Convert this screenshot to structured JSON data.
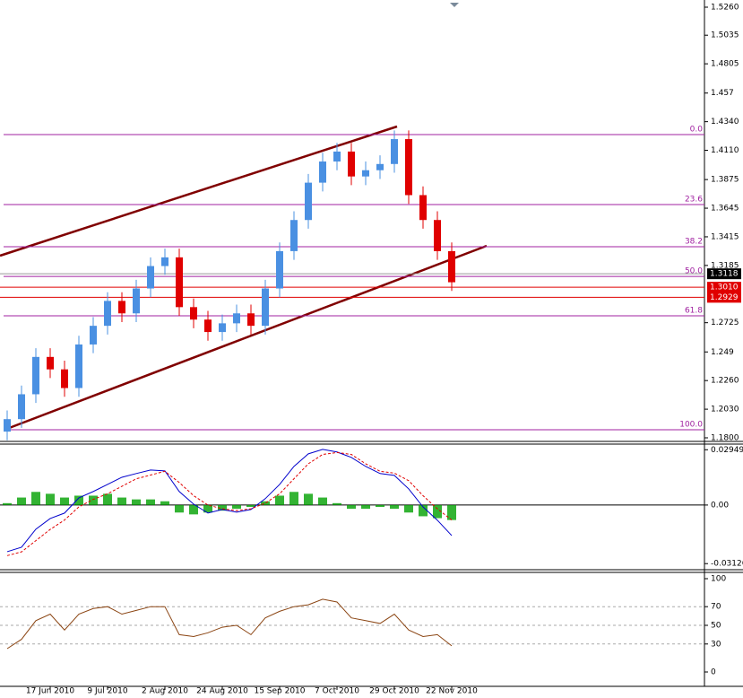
{
  "chart_data": [
    {
      "type": "candlestick",
      "categories": [
        null,
        null,
        null,
        "17 Jun 2010",
        null,
        null,
        null,
        "9 Jul 2010",
        null,
        null,
        null,
        "2 Aug 2010",
        null,
        null,
        null,
        "24 Aug 2010",
        null,
        null,
        null,
        "15 Sep 2010",
        null,
        null,
        null,
        "7 Oct 2010",
        null,
        null,
        null,
        "29 Oct 2010",
        null,
        null,
        null,
        "22 Nov 2010"
      ],
      "open": [
        1.185,
        1.195,
        1.215,
        1.245,
        1.235,
        1.22,
        1.255,
        1.27,
        1.29,
        1.28,
        1.3,
        1.318,
        1.325,
        1.285,
        1.275,
        1.265,
        1.272,
        1.28,
        1.27,
        1.3,
        1.33,
        1.355,
        1.385,
        1.402,
        1.41,
        1.39,
        1.395,
        1.4,
        1.42,
        1.375,
        1.355,
        1.33
      ],
      "high": [
        1.202,
        1.222,
        1.252,
        1.252,
        1.242,
        1.262,
        1.277,
        1.297,
        1.297,
        1.307,
        1.325,
        1.332,
        1.332,
        1.292,
        1.282,
        1.279,
        1.287,
        1.287,
        1.307,
        1.337,
        1.362,
        1.392,
        1.409,
        1.417,
        1.417,
        1.402,
        1.407,
        1.427,
        1.427,
        1.382,
        1.362,
        1.337
      ],
      "low": [
        1.178,
        1.188,
        1.208,
        1.228,
        1.213,
        1.213,
        1.248,
        1.263,
        1.273,
        1.273,
        1.293,
        1.311,
        1.278,
        1.268,
        1.258,
        1.258,
        1.265,
        1.263,
        1.263,
        1.293,
        1.323,
        1.348,
        1.378,
        1.395,
        1.383,
        1.383,
        1.388,
        1.393,
        1.368,
        1.348,
        1.323,
        1.298
      ],
      "close": [
        1.195,
        1.215,
        1.245,
        1.235,
        1.22,
        1.255,
        1.27,
        1.29,
        1.28,
        1.3,
        1.318,
        1.325,
        1.285,
        1.275,
        1.265,
        1.272,
        1.28,
        1.27,
        1.3,
        1.33,
        1.355,
        1.385,
        1.402,
        1.41,
        1.39,
        1.395,
        1.4,
        1.42,
        1.375,
        1.355,
        1.33,
        1.305
      ],
      "up_color": "#4a90e2",
      "down_color": "#e00000",
      "ylim": [
        1.18,
        1.526
      ],
      "yticks": [
        {
          "value": 1.526,
          "label": "1.5260"
        },
        1.5035,
        1.4805,
        1.457,
        {
          "value": 1.434,
          "label": "1.4340"
        },
        {
          "value": 1.411,
          "label": "1.4110"
        },
        1.3875,
        1.3645,
        1.3415,
        1.3185,
        1.2725,
        1.249,
        {
          "value": 1.226,
          "label": "1.2260"
        },
        {
          "value": 1.203,
          "label": "1.2030"
        },
        {
          "value": 1.18,
          "label": "1.1800"
        }
      ],
      "fib_levels": [
        {
          "label": "0.0",
          "price": 1.4236
        },
        {
          "label": "23.6",
          "price": 1.3674
        },
        {
          "label": "38.2",
          "price": 1.3335
        },
        {
          "label": "50.0",
          "price": 1.3097
        },
        {
          "label": "61.8",
          "price": 1.278
        },
        {
          "label": "100.0",
          "price": 1.1865
        }
      ],
      "price_lines": [
        {
          "value": 1.3118,
          "label": "1.3118",
          "color": "#000000"
        },
        {
          "value": 1.301,
          "label": "1.3010",
          "color": "#e00000"
        },
        {
          "value": 1.2929,
          "label": "1.2929",
          "color": "#e00000"
        }
      ]
    },
    {
      "type": "macd",
      "histogram": {
        "color": "#00a000",
        "values": [
          0.001,
          0.004,
          0.007,
          0.006,
          0.004,
          0.005,
          0.005,
          0.006,
          0.004,
          0.003,
          0.003,
          0.002,
          -0.004,
          -0.005,
          -0.004,
          -0.003,
          -0.002,
          -0.001,
          0.002,
          0.005,
          0.007,
          0.006,
          0.004,
          0.001,
          -0.002,
          -0.002,
          -0.001,
          -0.002,
          -0.004,
          -0.006,
          -0.007,
          -0.008
        ]
      },
      "series": [
        {
          "color": "#0000cc",
          "values": [
            -0.0249,
            -0.0225,
            -0.0129,
            -0.0072,
            -0.0043,
            0.0038,
            0.0072,
            0.011,
            0.0148,
            0.0168,
            0.0187,
            0.0182,
            0.0072,
            0.0005,
            -0.0043,
            -0.0024,
            -0.0038,
            -0.0024,
            0.0034,
            0.011,
            0.0206,
            0.0273,
            0.0297,
            0.0283,
            0.0254,
            0.0206,
            0.0168,
            0.0158,
            0.0086,
            -0.001,
            -0.0081,
            -0.0163
          ]
        },
        {
          "color": "#e00000",
          "values": [
            -0.027,
            -0.025,
            -0.019,
            -0.013,
            -0.008,
            -0.001,
            0.003,
            0.006,
            0.01,
            0.014,
            0.016,
            0.018,
            0.012,
            0.005,
            0,
            -0.002,
            -0.003,
            -0.002,
            0.001,
            0.006,
            0.014,
            0.022,
            0.027,
            0.028,
            0.027,
            0.022,
            0.018,
            0.017,
            0.013,
            0.005,
            -0.002,
            -0.008
          ]
        }
      ],
      "ylim": [
        -0.0345,
        0.0325
      ],
      "yticks": [
        0.02949,
        {
          "value": 0,
          "label": "0.00"
        },
        -0.03126
      ]
    },
    {
      "type": "line",
      "series": [
        {
          "color": "#8b4513",
          "values": [
            25,
            35,
            55,
            62,
            45,
            62,
            68,
            70,
            62,
            66,
            70,
            70,
            40,
            38,
            42,
            48,
            50,
            40,
            58,
            65,
            70,
            72,
            78,
            75,
            58,
            55,
            52,
            62,
            45,
            38,
            40,
            28
          ]
        }
      ],
      "ylim": [
        0,
        100
      ],
      "yticks": [
        100,
        70,
        50,
        30,
        0
      ],
      "grid": [
        70,
        50,
        30
      ]
    }
  ]
}
